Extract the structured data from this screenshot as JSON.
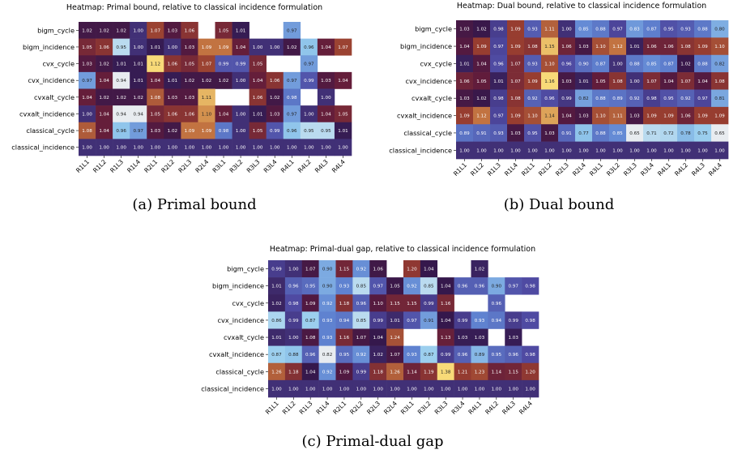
{
  "chart_data": [
    {
      "type": "heatmap",
      "title": "Heatmap: Primal bound, relative to classical incidence formulation",
      "caption": "(a) Primal bound",
      "rows": [
        "bigm_cycle",
        "bigm_incidence",
        "cvx_cycle",
        "cvx_incidence",
        "cvxalt_cycle",
        "cvxalt_incidence",
        "classical_cycle",
        "classical_incidence"
      ],
      "columns": [
        "R1L1",
        "R1L2",
        "R1L3",
        "R1L4",
        "R2L1",
        "R2L2",
        "R2L3",
        "R2L4",
        "R3L1",
        "R3L2",
        "R3L3",
        "R3L4",
        "R4L1",
        "R4L2",
        "R4L3",
        "R4L4"
      ],
      "values": [
        [
          1.02,
          1.02,
          1.02,
          1.0,
          1.07,
          1.03,
          1.06,
          null,
          1.05,
          1.01,
          null,
          null,
          0.97,
          null,
          null,
          null
        ],
        [
          1.05,
          1.06,
          0.95,
          1.0,
          1.01,
          1.0,
          1.03,
          1.09,
          1.09,
          1.04,
          1.0,
          1.0,
          1.02,
          0.96,
          1.04,
          1.07
        ],
        [
          1.03,
          1.02,
          1.01,
          1.01,
          1.12,
          1.06,
          1.05,
          1.07,
          0.99,
          0.99,
          1.05,
          null,
          null,
          0.97,
          null,
          null
        ],
        [
          0.97,
          1.04,
          0.94,
          1.01,
          1.04,
          1.01,
          1.02,
          1.02,
          1.02,
          1.0,
          1.04,
          1.06,
          0.97,
          0.99,
          1.03,
          1.04
        ],
        [
          1.04,
          1.02,
          1.02,
          1.02,
          1.08,
          1.03,
          1.03,
          1.11,
          null,
          null,
          1.06,
          1.02,
          0.98,
          null,
          1.0,
          null
        ],
        [
          1.0,
          1.04,
          0.94,
          0.94,
          1.05,
          1.06,
          1.06,
          1.1,
          1.04,
          1.0,
          1.01,
          1.03,
          0.97,
          1.0,
          1.04,
          1.05
        ],
        [
          1.08,
          1.04,
          0.96,
          0.97,
          1.03,
          1.02,
          1.09,
          1.09,
          0.98,
          1.0,
          1.05,
          0.99,
          0.96,
          0.95,
          0.95,
          1.01
        ],
        [
          1.0,
          1.0,
          1.0,
          1.0,
          1.0,
          1.0,
          1.0,
          1.0,
          1.0,
          1.0,
          1.0,
          1.0,
          1.0,
          1.0,
          1.0,
          1.0
        ]
      ]
    },
    {
      "type": "heatmap",
      "title": "Heatmap: Dual bound, relative to classical incidence formulation",
      "caption": "(b) Dual bound",
      "rows": [
        "bigm_cycle",
        "bigm_incidence",
        "cvx_cycle",
        "cvx_incidence",
        "cvxalt_cycle",
        "cvxalt_incidence",
        "classical_cycle",
        "classical_incidence"
      ],
      "columns": [
        "R1L1",
        "R1L2",
        "R1L3",
        "R1L4",
        "R2L1",
        "R2L2",
        "R2L3",
        "R2L4",
        "R3L1",
        "R3L2",
        "R3L3",
        "R3L4",
        "R4L1",
        "R4L2",
        "R4L3",
        "R4L4"
      ],
      "values": [
        [
          1.03,
          1.02,
          0.98,
          1.09,
          0.93,
          1.11,
          1.0,
          0.85,
          0.88,
          0.97,
          0.83,
          0.87,
          0.95,
          0.93,
          0.88,
          0.8
        ],
        [
          1.04,
          1.09,
          0.97,
          1.09,
          1.08,
          1.15,
          1.06,
          1.03,
          1.1,
          1.12,
          1.01,
          1.06,
          1.06,
          1.08,
          1.09,
          1.1
        ],
        [
          1.01,
          1.04,
          0.96,
          1.07,
          0.93,
          1.1,
          0.96,
          0.9,
          0.87,
          1.0,
          0.88,
          0.85,
          0.87,
          1.02,
          0.88,
          0.82
        ],
        [
          1.06,
          1.05,
          1.01,
          1.07,
          1.09,
          1.16,
          1.03,
          1.01,
          1.05,
          1.08,
          1.0,
          1.07,
          1.04,
          1.07,
          1.04,
          1.08
        ],
        [
          1.03,
          1.02,
          0.98,
          1.08,
          0.92,
          0.96,
          0.99,
          0.82,
          0.88,
          0.89,
          0.92,
          0.98,
          0.95,
          0.92,
          0.97,
          0.81
        ],
        [
          1.09,
          1.12,
          0.97,
          1.09,
          1.1,
          1.14,
          1.04,
          1.03,
          1.1,
          1.11,
          1.03,
          1.09,
          1.09,
          1.06,
          1.09,
          1.09
        ],
        [
          0.89,
          0.91,
          0.93,
          1.03,
          0.95,
          1.03,
          0.91,
          0.77,
          0.88,
          0.85,
          0.65,
          0.71,
          0.72,
          0.78,
          0.75,
          0.65
        ],
        [
          1.0,
          1.0,
          1.0,
          1.0,
          1.0,
          1.0,
          1.0,
          1.0,
          1.0,
          1.0,
          1.0,
          1.0,
          1.0,
          1.0,
          1.0,
          1.0
        ]
      ]
    },
    {
      "type": "heatmap",
      "title": "Heatmap: Primal-dual gap, relative to classical incidence formulation",
      "caption": "(c) Primal-dual gap",
      "rows": [
        "bigm_cycle",
        "bigm_incidence",
        "cvx_cycle",
        "cvx_incidence",
        "cvxalt_cycle",
        "cvxalt_incidence",
        "classical_cycle",
        "classical_incidence"
      ],
      "columns": [
        "R1L1",
        "R1L2",
        "R1L3",
        "R1L4",
        "R2L1",
        "R2L2",
        "R2L3",
        "R2L4",
        "R3L1",
        "R3L2",
        "R3L3",
        "R3L4",
        "R4L1",
        "R4L2",
        "R4L3",
        "R4L4"
      ],
      "values": [
        [
          0.99,
          1.0,
          1.07,
          0.9,
          1.15,
          0.92,
          1.06,
          null,
          1.2,
          1.04,
          null,
          null,
          1.02,
          null,
          null,
          null
        ],
        [
          1.01,
          0.96,
          0.95,
          0.9,
          0.93,
          0.85,
          0.97,
          1.05,
          0.92,
          0.85,
          1.04,
          0.96,
          0.96,
          0.9,
          0.97,
          0.98
        ],
        [
          1.02,
          0.98,
          1.09,
          0.92,
          1.18,
          0.96,
          1.1,
          1.15,
          1.15,
          0.99,
          1.16,
          null,
          null,
          0.96,
          null,
          null
        ],
        [
          0.86,
          0.99,
          0.87,
          0.93,
          0.94,
          0.85,
          0.99,
          1.01,
          0.97,
          0.91,
          1.04,
          0.99,
          0.93,
          0.94,
          0.99,
          0.98
        ],
        [
          1.01,
          1.0,
          1.08,
          0.93,
          1.16,
          1.07,
          1.04,
          1.24,
          null,
          null,
          1.13,
          1.03,
          1.03,
          null,
          1.03,
          null
        ],
        [
          0.87,
          0.88,
          0.96,
          0.82,
          0.95,
          0.92,
          1.02,
          1.07,
          0.93,
          0.87,
          0.99,
          0.96,
          0.89,
          0.95,
          0.96,
          0.98
        ],
        [
          1.26,
          1.18,
          1.04,
          0.92,
          1.09,
          0.99,
          1.18,
          1.26,
          1.14,
          1.19,
          1.38,
          1.21,
          1.23,
          1.14,
          1.15,
          1.2
        ],
        [
          1.0,
          1.0,
          1.0,
          1.0,
          1.0,
          1.0,
          1.0,
          1.0,
          1.0,
          1.0,
          1.0,
          1.0,
          1.0,
          1.0,
          1.0,
          1.0
        ]
      ]
    }
  ]
}
